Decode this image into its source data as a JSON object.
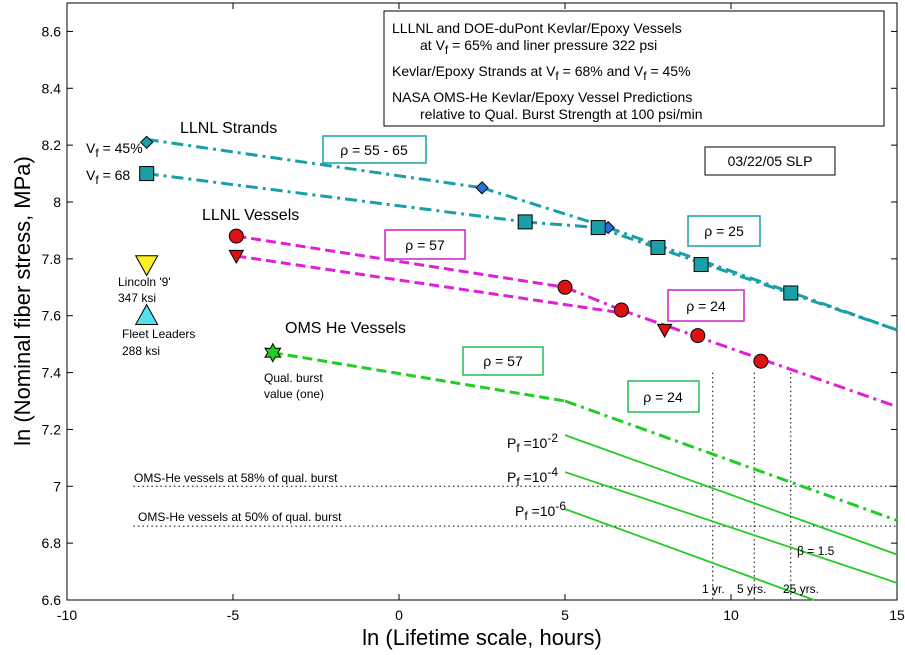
{
  "chart_data": {
    "type": "line",
    "xlabel": "ln (Lifetime scale, hours)",
    "ylabel": "ln (Nominal fiber stress, MPa)",
    "xlim": [
      -10,
      15
    ],
    "ylim": [
      6.6,
      8.7
    ],
    "x_ticks": [
      -10,
      -5,
      0,
      5,
      10,
      15
    ],
    "y_ticks": [
      6.6,
      6.8,
      7.0,
      7.2,
      7.4,
      7.6,
      7.8,
      8.0,
      8.2,
      8.4,
      8.6
    ],
    "x_tick_labels": [
      "-10",
      "-5",
      "0",
      "5",
      "10",
      "15"
    ],
    "y_tick_labels": [
      "6.6",
      "6.8",
      "7",
      "7.2",
      "7.4",
      "7.6",
      "7.8",
      "8",
      "8.2",
      "8.4",
      "8.6"
    ],
    "legend_box": [
      "LLLNL and DOE-duPont Kevlar/Epoxy Vessels",
      "at V",
      "f",
      " = 65% and liner pressure 322 psi",
      "Kevlar/Epoxy Strands at V",
      "f",
      " = 68% and V",
      "f",
      " = 45%",
      "NASA OMS-He Kevlar/Epoxy Vessel Predictions",
      "relative to Qual. Burst Strength at 100 psi/min"
    ],
    "date_label": "03/22/05 SLP",
    "series": [
      {
        "key": "strands45",
        "color": "#1a9fa8",
        "dash": "dashdot",
        "x": [
          -7.6,
          2.5,
          6.3,
          15
        ],
        "y": [
          8.22,
          8.05,
          7.91,
          7.55
        ]
      },
      {
        "key": "strands68",
        "color": "#1a9fa8",
        "dash": "dashdot",
        "x": [
          -7.6,
          3.8,
          6.0,
          15
        ],
        "y": [
          8.1,
          7.93,
          7.91,
          7.55
        ]
      },
      {
        "key": "vessels_upper",
        "color": "#e020d8",
        "dash": "dash_then_dashdot",
        "x": [
          -4.9,
          5.0,
          6.7,
          15
        ],
        "y": [
          7.88,
          7.7,
          7.62,
          7.28
        ]
      },
      {
        "key": "vessels_lower",
        "color": "#e020d8",
        "dash": "dash",
        "x": [
          -4.9,
          6.7
        ],
        "y": [
          7.81,
          7.61
        ]
      },
      {
        "key": "oms",
        "color": "#22cc22",
        "dash": "dash_then_dashdot",
        "x": [
          -3.8,
          5.0,
          15
        ],
        "y": [
          7.47,
          7.3,
          6.88
        ]
      },
      {
        "key": "pf2",
        "color": "#22cc22",
        "dash": "solid",
        "x": [
          5.0,
          15
        ],
        "y": [
          7.18,
          6.76
        ]
      },
      {
        "key": "pf4",
        "color": "#22cc22",
        "dash": "solid",
        "x": [
          5.0,
          15
        ],
        "y": [
          7.05,
          6.66
        ]
      },
      {
        "key": "pf6",
        "color": "#22cc22",
        "dash": "solid",
        "x": [
          5.0,
          12.5
        ],
        "y": [
          6.92,
          6.6
        ]
      }
    ],
    "markers": [
      {
        "shape": "diamond",
        "color": "#1a9fa8",
        "x": -7.6,
        "y": 8.21,
        "size": 6
      },
      {
        "shape": "diamond",
        "color": "#2b6fd6",
        "x": 2.5,
        "y": 8.05,
        "size": 6
      },
      {
        "shape": "diamond",
        "color": "#2b6fd6",
        "x": 6.3,
        "y": 7.91,
        "size": 6
      },
      {
        "shape": "square",
        "color": "#1a9fa8",
        "x": -7.6,
        "y": 8.1,
        "size": 7
      },
      {
        "shape": "square",
        "color": "#1a9fa8",
        "x": 3.8,
        "y": 7.93,
        "size": 7
      },
      {
        "shape": "square",
        "color": "#1a9fa8",
        "x": 6.0,
        "y": 7.91,
        "size": 7
      },
      {
        "shape": "square",
        "color": "#1a9fa8",
        "x": 7.8,
        "y": 7.84,
        "size": 7
      },
      {
        "shape": "square",
        "color": "#1a9fa8",
        "x": 9.1,
        "y": 7.78,
        "size": 7
      },
      {
        "shape": "square",
        "color": "#1a9fa8",
        "x": 11.8,
        "y": 7.68,
        "size": 7
      },
      {
        "shape": "circle",
        "color": "#dd1111",
        "x": -4.9,
        "y": 7.88,
        "size": 7
      },
      {
        "shape": "circle",
        "color": "#dd1111",
        "x": 5.0,
        "y": 7.7,
        "size": 7
      },
      {
        "shape": "circle",
        "color": "#dd1111",
        "x": 6.7,
        "y": 7.62,
        "size": 7
      },
      {
        "shape": "circle",
        "color": "#dd1111",
        "x": 9.0,
        "y": 7.53,
        "size": 7
      },
      {
        "shape": "circle",
        "color": "#dd1111",
        "x": 10.9,
        "y": 7.44,
        "size": 7
      },
      {
        "shape": "tri-down",
        "color": "#dd1111",
        "x": -4.9,
        "y": 7.81,
        "size": 7
      },
      {
        "shape": "tri-down",
        "color": "#dd1111",
        "x": 8.0,
        "y": 7.55,
        "size": 7
      },
      {
        "shape": "tri-down",
        "color": "#ffee22",
        "x": -7.6,
        "y": 7.78,
        "size": 11
      },
      {
        "shape": "tri-up",
        "color": "#55e0ee",
        "x": -7.6,
        "y": 7.6,
        "size": 11
      },
      {
        "shape": "hexagram",
        "color": "#22cc22",
        "x": -3.8,
        "y": 7.47,
        "size": 9
      }
    ],
    "reference_lines": [
      {
        "label": "OMS-He vessels at 58% of qual. burst",
        "y": 7.0,
        "x": [
          -8.0,
          15
        ]
      },
      {
        "label": "OMS-He vessels at 50% of qual. burst",
        "y": 6.86,
        "x": [
          -8.0,
          15
        ]
      }
    ],
    "vertical_lines": [
      9.45,
      10.7,
      11.8
    ],
    "time_labels": [
      "1 yr.",
      "5 yrs.",
      "25 yrs."
    ],
    "beta_label": "β = 1.5",
    "rho_boxes": [
      {
        "text": "ρ = 55 - 65",
        "color": "#1a9fa8"
      },
      {
        "text": "ρ = 25",
        "color": "#1a9fa8"
      },
      {
        "text": "ρ = 57",
        "color": "#cc22cc"
      },
      {
        "text": "ρ = 24",
        "color": "#cc22cc"
      },
      {
        "text": "ρ = 57",
        "color": "#22bb55"
      },
      {
        "text": "ρ = 24",
        "color": "#22bb55"
      }
    ],
    "annotations": {
      "llnl_strands": "LLNL Strands",
      "vf45_v": "V",
      "vf45_sub": "f",
      "vf45_tail": " = 45%",
      "vf68_v": "V",
      "vf68_sub": "f",
      "vf68_tail": " = 68",
      "llnl_vessels": "LLNL Vessels",
      "lincoln1": "Lincoln '9'",
      "lincoln2": "347 ksi",
      "fleet1": "Fleet Leaders",
      "fleet2": "288 ksi",
      "oms": "OMS He Vessels",
      "qual1": "Qual. burst",
      "qual2": "value (one)",
      "pf_p": "P",
      "pf_f": "f",
      "pf_eq": " =10",
      "pf2_exp": "-2",
      "pf4_exp": "-4",
      "pf6_exp": "-6"
    }
  }
}
